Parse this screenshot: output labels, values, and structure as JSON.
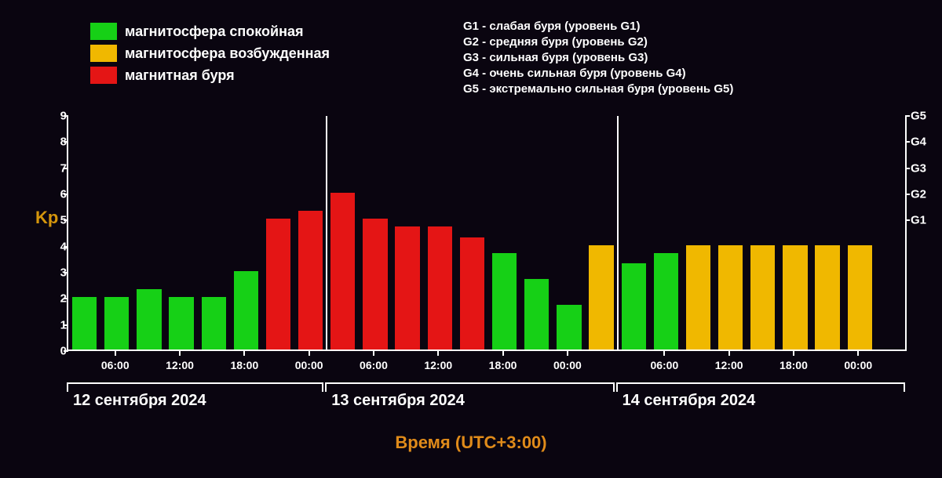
{
  "chart": {
    "type": "bar",
    "background_color": "#0a0510",
    "axis_color": "#ffffff",
    "text_color": "#ffffff",
    "accent_color": "#e08b1a",
    "y_label": "Kp",
    "x_label": "Время (UTC+3:00)",
    "y_min": 0,
    "y_max": 9,
    "y_ticks": [
      0,
      1,
      2,
      3,
      4,
      5,
      6,
      7,
      8,
      9
    ],
    "g_ticks": [
      {
        "value": 5,
        "label": "G1"
      },
      {
        "value": 6,
        "label": "G2"
      },
      {
        "value": 7,
        "label": "G3"
      },
      {
        "value": 8,
        "label": "G4"
      },
      {
        "value": 9,
        "label": "G5"
      }
    ],
    "bar_gap_ratio": 0.12,
    "colors": {
      "calm": "#16d016",
      "excited": "#f0b800",
      "storm": "#e41515"
    },
    "day_boundaries": [
      0,
      8,
      17,
      26
    ],
    "day_separators": [
      8,
      17,
      26
    ],
    "bars": [
      {
        "v": 2.0,
        "c": "calm"
      },
      {
        "v": 2.0,
        "c": "calm"
      },
      {
        "v": 2.3,
        "c": "calm"
      },
      {
        "v": 2.0,
        "c": "calm"
      },
      {
        "v": 2.0,
        "c": "calm"
      },
      {
        "v": 3.0,
        "c": "calm"
      },
      {
        "v": 5.0,
        "c": "storm"
      },
      {
        "v": 5.3,
        "c": "storm"
      },
      {
        "v": 6.0,
        "c": "storm"
      },
      {
        "v": 5.0,
        "c": "storm"
      },
      {
        "v": 4.7,
        "c": "storm"
      },
      {
        "v": 4.7,
        "c": "storm"
      },
      {
        "v": 4.3,
        "c": "storm"
      },
      {
        "v": 3.7,
        "c": "calm"
      },
      {
        "v": 2.7,
        "c": "calm"
      },
      {
        "v": 1.7,
        "c": "calm"
      },
      {
        "v": 4.0,
        "c": "excited"
      },
      {
        "v": 3.3,
        "c": "calm"
      },
      {
        "v": 3.7,
        "c": "calm"
      },
      {
        "v": 4.0,
        "c": "excited"
      },
      {
        "v": 4.0,
        "c": "excited"
      },
      {
        "v": 4.0,
        "c": "excited"
      },
      {
        "v": 4.0,
        "c": "excited"
      },
      {
        "v": 4.0,
        "c": "excited"
      },
      {
        "v": 4.0,
        "c": "excited"
      }
    ],
    "x_tick_pairs": [
      {
        "pos": 1.5,
        "label": "06:00"
      },
      {
        "pos": 3.5,
        "label": "12:00"
      },
      {
        "pos": 5.5,
        "label": "18:00"
      },
      {
        "pos": 7.5,
        "label": "00:00"
      },
      {
        "pos": 9.5,
        "label": "06:00"
      },
      {
        "pos": 11.5,
        "label": "12:00"
      },
      {
        "pos": 13.5,
        "label": "18:00"
      },
      {
        "pos": 15.5,
        "label": "00:00"
      },
      {
        "pos": 18.5,
        "label": "06:00"
      },
      {
        "pos": 20.5,
        "label": "12:00"
      },
      {
        "pos": 22.5,
        "label": "18:00"
      },
      {
        "pos": 24.5,
        "label": "00:00"
      }
    ],
    "dates": [
      {
        "from": 0,
        "to": 8,
        "label": "12 сентября 2024"
      },
      {
        "from": 8,
        "to": 17,
        "label": "13 сентября 2024"
      },
      {
        "from": 17,
        "to": 26,
        "label": "14 сентября 2024"
      }
    ]
  },
  "legend_left": [
    {
      "color_key": "calm",
      "label": "магнитосфера спокойная"
    },
    {
      "color_key": "excited",
      "label": "магнитосфера возбужденная"
    },
    {
      "color_key": "storm",
      "label": "магнитная буря"
    }
  ],
  "legend_right": [
    "G1 - слабая буря (уровень G1)",
    "G2 - средняя буря (уровень G2)",
    "G3 - сильная буря (уровень G3)",
    "G4 - очень сильная буря (уровень G4)",
    "G5 - экстремально сильная буря (уровень G5)"
  ]
}
